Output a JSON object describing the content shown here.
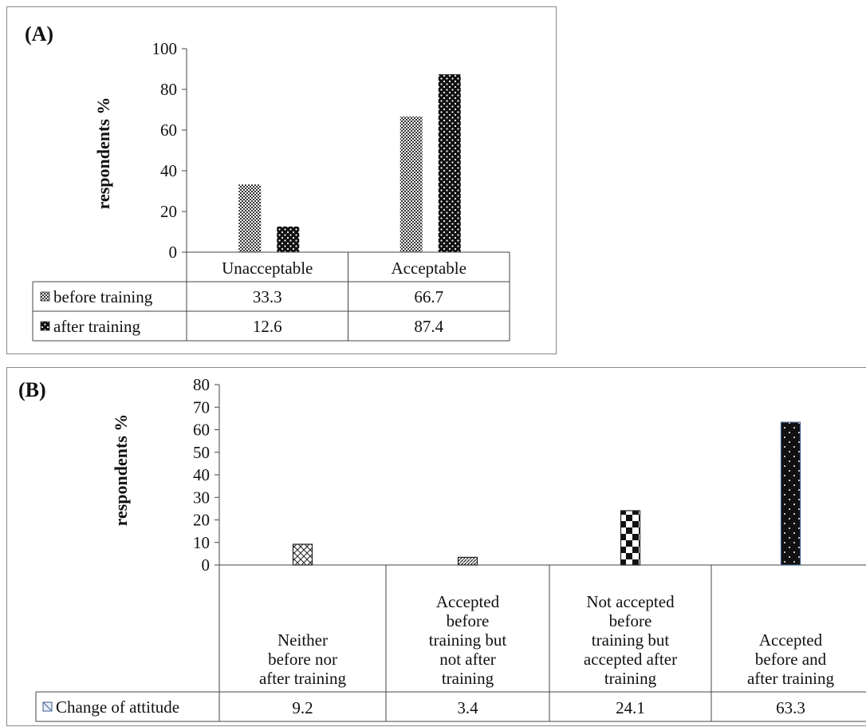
{
  "chart_data": [
    {
      "type": "bar",
      "panel_label": "(A)",
      "ylabel": "respondents %",
      "ylim": [
        0,
        100
      ],
      "yticks": [
        0,
        20,
        40,
        60,
        80,
        100
      ],
      "categories": [
        "Unacceptable",
        "Acceptable"
      ],
      "series": [
        {
          "name": "before training",
          "values": [
            33.3,
            66.7
          ],
          "pattern": "fine-checker"
        },
        {
          "name": "after training",
          "values": [
            12.6,
            87.4
          ],
          "pattern": "white-dots-on-black"
        }
      ],
      "data_table": true,
      "legend": "data-table"
    },
    {
      "type": "bar",
      "panel_label": "(B)",
      "ylabel": "respondents %",
      "ylim": [
        0,
        80
      ],
      "yticks": [
        0,
        10,
        20,
        30,
        40,
        50,
        60,
        70,
        80
      ],
      "categories": [
        [
          "Neither",
          "before nor",
          "after training"
        ],
        [
          "Accepted",
          "before",
          "training but",
          "not after",
          "training"
        ],
        [
          "Not accepted",
          "before",
          "training but",
          "accepted after",
          "training"
        ],
        [
          "Accepted",
          "before and",
          "after training"
        ]
      ],
      "series": [
        {
          "name": "Change of attitude",
          "values": [
            9.2,
            3.4,
            24.1,
            63.3
          ],
          "displayed": [
            "9.2",
            "3.4",
            "24.1",
            "63.3"
          ]
        }
      ],
      "bar_patterns": [
        "crosshatch",
        "diagonal-hatch",
        "checkerboard",
        "white-dots-on-black"
      ],
      "data_table": true,
      "legend": "data-table"
    }
  ]
}
